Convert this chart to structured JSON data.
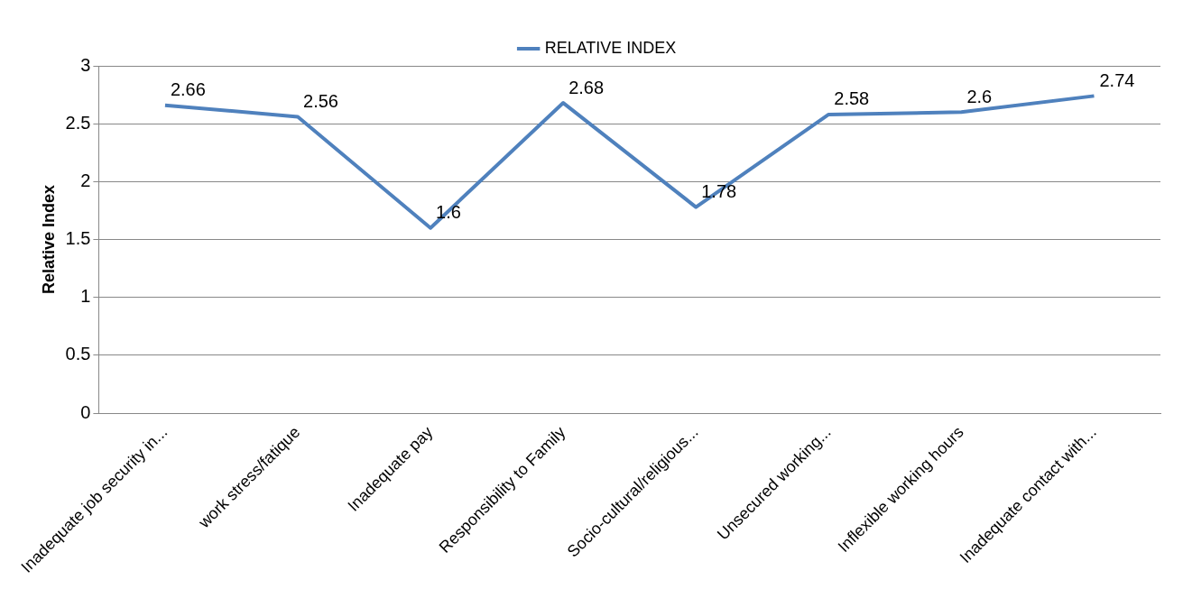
{
  "chart_data": {
    "type": "line",
    "ylabel": "Relative Index",
    "categories": [
      "Inadequate job security in...",
      "work stress/fatique",
      "Inadequate pay",
      "Responsibility to Family",
      "Socio-cultural/religious...",
      "Unsecured working...",
      "Inflexible working hours",
      "Inadequate contact with..."
    ],
    "series": [
      {
        "name": "RELATIVE INDEX",
        "color": "#4f81bd",
        "values": [
          2.66,
          2.56,
          1.6,
          2.68,
          1.78,
          2.58,
          2.6,
          2.74
        ]
      }
    ],
    "ylim": [
      0,
      3
    ],
    "yticks": [
      0,
      0.5,
      1,
      1.5,
      2,
      2.5,
      3
    ],
    "grid": "y",
    "legend": "top",
    "line_style": "solid",
    "data_labels": true
  }
}
